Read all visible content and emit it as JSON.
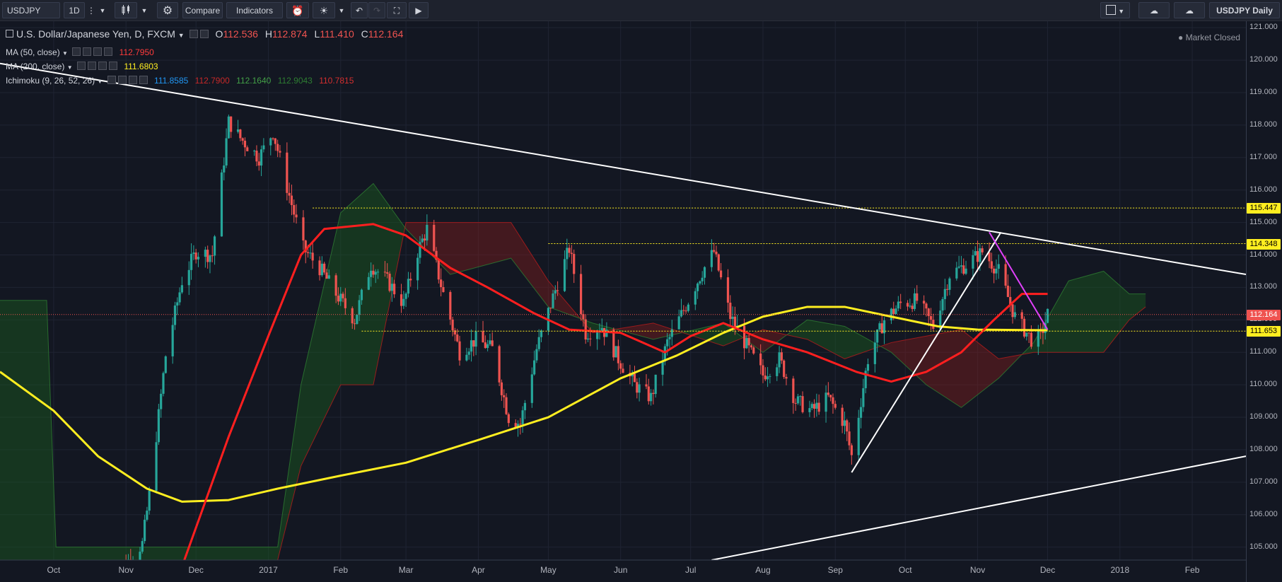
{
  "toolbar": {
    "symbol": "USDJPY",
    "interval": "1D",
    "compare_label": "Compare",
    "indicators_label": "Indicators",
    "layout_name": "USDJPY Daily"
  },
  "legend": {
    "title": "U.S. Dollar/Japanese Yen, D, FXCM",
    "open_label": "O",
    "open": "112.536",
    "high_label": "H",
    "high": "112.874",
    "low_label": "L",
    "low": "111.410",
    "close_label": "C",
    "close": "112.164",
    "ma50_label": "MA (50, close)",
    "ma50_value": "112.7950",
    "ma200_label": "MA (200, close)",
    "ma200_value": "111.6803",
    "ichimoku_label": "Ichimoku (9, 26, 52, 26)",
    "ichimoku_values": [
      "111.8585",
      "112.7900",
      "112.1640",
      "112.9043",
      "110.7815"
    ],
    "market_status": "Market Closed"
  },
  "colors": {
    "background": "#131722",
    "up": "#26a69a",
    "down": "#ef5350",
    "ma50": "#ff1f1f",
    "ma200": "#ffee20",
    "kumo_bull": "#1b5e20",
    "kumo_bear": "#7f1d1d",
    "trendline": "#ffffff",
    "magenta": "#e040fb",
    "hline": "#ffee20"
  },
  "price_tags": {
    "last": "112.164",
    "levels": [
      "115.447",
      "114.348",
      "111.653"
    ]
  },
  "chart_data": {
    "type": "candlestick",
    "ylim": [
      104.6,
      121.2
    ],
    "yticks": [
      "121.000",
      "120.000",
      "119.000",
      "118.000",
      "117.000",
      "116.000",
      "115.000",
      "114.000",
      "113.000",
      "112.000",
      "111.000",
      "110.000",
      "109.000",
      "108.000",
      "107.000",
      "106.000",
      "105.000"
    ],
    "xlim": [
      "2016-09-08",
      "2018-02-24"
    ],
    "xticks": [
      {
        "label": "Oct",
        "date": "2016-10-01"
      },
      {
        "label": "Nov",
        "date": "2016-11-01"
      },
      {
        "label": "Dec",
        "date": "2016-12-01"
      },
      {
        "label": "2017",
        "date": "2017-01-01"
      },
      {
        "label": "Feb",
        "date": "2017-02-01"
      },
      {
        "label": "Mar",
        "date": "2017-03-01"
      },
      {
        "label": "Apr",
        "date": "2017-04-01"
      },
      {
        "label": "May",
        "date": "2017-05-01"
      },
      {
        "label": "Jun",
        "date": "2017-06-01"
      },
      {
        "label": "Jul",
        "date": "2017-07-01"
      },
      {
        "label": "Aug",
        "date": "2017-08-01"
      },
      {
        "label": "Sep",
        "date": "2017-09-01"
      },
      {
        "label": "Oct",
        "date": "2017-10-01"
      },
      {
        "label": "Nov",
        "date": "2017-11-01"
      },
      {
        "label": "Dec",
        "date": "2017-12-01"
      },
      {
        "label": "2018",
        "date": "2018-01-01"
      },
      {
        "label": "Feb",
        "date": "2018-02-01"
      }
    ],
    "close_series": [
      [
        "2016-10-25",
        104.2
      ],
      [
        "2016-11-01",
        104.5
      ],
      [
        "2016-11-08",
        105.1
      ],
      [
        "2016-11-11",
        106.6
      ],
      [
        "2016-11-18",
        110.9
      ],
      [
        "2016-11-25",
        113.2
      ],
      [
        "2016-12-01",
        114.1
      ],
      [
        "2016-12-08",
        114.0
      ],
      [
        "2016-12-15",
        118.1
      ],
      [
        "2016-12-20",
        117.6
      ],
      [
        "2016-12-28",
        117.0
      ],
      [
        "2017-01-03",
        117.8
      ],
      [
        "2017-01-09",
        116.1
      ],
      [
        "2017-01-16",
        114.2
      ],
      [
        "2017-01-23",
        113.6
      ],
      [
        "2017-01-30",
        112.8
      ],
      [
        "2017-02-07",
        112.0
      ],
      [
        "2017-02-14",
        113.7
      ],
      [
        "2017-02-21",
        113.2
      ],
      [
        "2017-02-28",
        112.5
      ],
      [
        "2017-03-06",
        114.1
      ],
      [
        "2017-03-10",
        114.8
      ],
      [
        "2017-03-17",
        112.8
      ],
      [
        "2017-03-24",
        111.0
      ],
      [
        "2017-03-31",
        111.4
      ],
      [
        "2017-04-07",
        111.1
      ],
      [
        "2017-04-14",
        109.0
      ],
      [
        "2017-04-19",
        108.8
      ],
      [
        "2017-04-26",
        111.1
      ],
      [
        "2017-05-03",
        112.7
      ],
      [
        "2017-05-10",
        114.2
      ],
      [
        "2017-05-17",
        111.6
      ],
      [
        "2017-05-24",
        111.8
      ],
      [
        "2017-05-31",
        110.8
      ],
      [
        "2017-06-07",
        110.0
      ],
      [
        "2017-06-14",
        109.6
      ],
      [
        "2017-06-21",
        111.3
      ],
      [
        "2017-06-28",
        112.3
      ],
      [
        "2017-07-06",
        113.5
      ],
      [
        "2017-07-11",
        114.1
      ],
      [
        "2017-07-18",
        112.1
      ],
      [
        "2017-07-25",
        111.2
      ],
      [
        "2017-08-01",
        110.3
      ],
      [
        "2017-08-08",
        110.8
      ],
      [
        "2017-08-15",
        109.5
      ],
      [
        "2017-08-22",
        109.2
      ],
      [
        "2017-08-29",
        109.6
      ],
      [
        "2017-09-05",
        108.8
      ],
      [
        "2017-09-08",
        107.8
      ],
      [
        "2017-09-15",
        110.8
      ],
      [
        "2017-09-22",
        112.0
      ],
      [
        "2017-09-29",
        112.5
      ],
      [
        "2017-10-06",
        112.6
      ],
      [
        "2017-10-13",
        111.8
      ],
      [
        "2017-10-20",
        113.4
      ],
      [
        "2017-10-27",
        113.7
      ],
      [
        "2017-11-03",
        114.1
      ],
      [
        "2017-11-10",
        113.5
      ],
      [
        "2017-11-17",
        112.1
      ],
      [
        "2017-11-24",
        111.4
      ],
      [
        "2017-11-28",
        111.5
      ],
      [
        "2017-12-01",
        112.164
      ]
    ],
    "ma50": [
      [
        "2016-11-25",
        104.4
      ],
      [
        "2016-12-15",
        108.4
      ],
      [
        "2017-01-01",
        111.5
      ],
      [
        "2017-01-15",
        114.0
      ],
      [
        "2017-01-25",
        114.8
      ],
      [
        "2017-02-15",
        114.95
      ],
      [
        "2017-03-01",
        114.6
      ],
      [
        "2017-03-20",
        113.6
      ],
      [
        "2017-04-05",
        113.0
      ],
      [
        "2017-04-25",
        112.2
      ],
      [
        "2017-05-10",
        111.7
      ],
      [
        "2017-06-01",
        111.6
      ],
      [
        "2017-06-20",
        111.0
      ],
      [
        "2017-07-01",
        111.5
      ],
      [
        "2017-07-15",
        111.9
      ],
      [
        "2017-08-01",
        111.4
      ],
      [
        "2017-08-20",
        111.0
      ],
      [
        "2017-09-10",
        110.4
      ],
      [
        "2017-09-25",
        110.1
      ],
      [
        "2017-10-10",
        110.4
      ],
      [
        "2017-10-25",
        111.0
      ],
      [
        "2017-11-08",
        112.0
      ],
      [
        "2017-11-20",
        112.8
      ],
      [
        "2017-12-01",
        112.8
      ]
    ],
    "ma200": [
      [
        "2016-09-08",
        110.4
      ],
      [
        "2016-10-01",
        109.2
      ],
      [
        "2016-10-20",
        107.8
      ],
      [
        "2016-11-10",
        106.8
      ],
      [
        "2016-11-25",
        106.4
      ],
      [
        "2016-12-15",
        106.45
      ],
      [
        "2017-01-05",
        106.8
      ],
      [
        "2017-02-01",
        107.2
      ],
      [
        "2017-03-01",
        107.6
      ],
      [
        "2017-04-01",
        108.3
      ],
      [
        "2017-05-01",
        109.0
      ],
      [
        "2017-06-01",
        110.2
      ],
      [
        "2017-06-25",
        110.9
      ],
      [
        "2017-07-15",
        111.6
      ],
      [
        "2017-08-01",
        112.1
      ],
      [
        "2017-08-20",
        112.4
      ],
      [
        "2017-09-05",
        112.4
      ],
      [
        "2017-09-25",
        112.1
      ],
      [
        "2017-10-15",
        111.8
      ],
      [
        "2017-11-01",
        111.7
      ],
      [
        "2017-12-01",
        111.68
      ]
    ],
    "ichimoku_cloud": {
      "span_a": [
        [
          "2016-09-08",
          112.6
        ],
        [
          "2016-09-28",
          112.6
        ],
        [
          "2016-10-02",
          105.0
        ],
        [
          "2017-01-05",
          105.0
        ],
        [
          "2017-01-15",
          110.0
        ],
        [
          "2017-02-01",
          115.3
        ],
        [
          "2017-02-15",
          116.2
        ],
        [
          "2017-03-01",
          114.8
        ],
        [
          "2017-03-20",
          113.4
        ],
        [
          "2017-04-15",
          113.9
        ],
        [
          "2017-05-01",
          112.4
        ],
        [
          "2017-05-20",
          111.9
        ],
        [
          "2017-06-15",
          111.4
        ],
        [
          "2017-07-15",
          111.9
        ],
        [
          "2017-08-01",
          111.0
        ],
        [
          "2017-08-20",
          112.0
        ],
        [
          "2017-09-05",
          111.8
        ],
        [
          "2017-09-25",
          111.0
        ],
        [
          "2017-10-10",
          110.0
        ],
        [
          "2017-10-25",
          109.3
        ],
        [
          "2017-11-10",
          110.2
        ],
        [
          "2017-11-25",
          111.3
        ],
        [
          "2017-12-10",
          113.2
        ],
        [
          "2017-12-25",
          113.5
        ],
        [
          "2018-01-05",
          112.8
        ],
        [
          "2018-01-12",
          112.8
        ]
      ],
      "span_b": [
        [
          "2016-09-08",
          104.6
        ],
        [
          "2016-09-28",
          104.6
        ],
        [
          "2016-10-02",
          104.6
        ],
        [
          "2017-01-05",
          104.6
        ],
        [
          "2017-01-15",
          107.5
        ],
        [
          "2017-02-01",
          110.0
        ],
        [
          "2017-02-15",
          110.0
        ],
        [
          "2017-03-01",
          115.0
        ],
        [
          "2017-03-20",
          115.0
        ],
        [
          "2017-04-15",
          115.0
        ],
        [
          "2017-05-01",
          113.2
        ],
        [
          "2017-05-20",
          111.6
        ],
        [
          "2017-06-15",
          111.9
        ],
        [
          "2017-07-15",
          111.2
        ],
        [
          "2017-08-01",
          111.7
        ],
        [
          "2017-08-20",
          111.4
        ],
        [
          "2017-09-05",
          110.8
        ],
        [
          "2017-09-25",
          111.3
        ],
        [
          "2017-10-10",
          111.5
        ],
        [
          "2017-10-25",
          111.7
        ],
        [
          "2017-11-10",
          110.8
        ],
        [
          "2017-11-25",
          111.0
        ],
        [
          "2017-12-10",
          111.0
        ],
        [
          "2017-12-25",
          111.0
        ],
        [
          "2018-01-05",
          112.0
        ],
        [
          "2018-01-12",
          112.4
        ]
      ]
    },
    "trendlines": [
      {
        "from": [
          "2016-09-08",
          119.9
        ],
        "to": [
          "2018-02-24",
          113.4
        ],
        "color": "white"
      },
      {
        "from": [
          "2017-07-10",
          104.6
        ],
        "to": [
          "2018-02-24",
          107.8
        ],
        "color": "white"
      },
      {
        "from": [
          "2017-09-08",
          107.3
        ],
        "to": [
          "2017-11-11",
          114.7
        ],
        "color": "white"
      },
      {
        "from": [
          "2017-11-06",
          114.7
        ],
        "to": [
          "2017-12-01",
          111.7
        ],
        "color": "magenta"
      }
    ],
    "hlines": [
      {
        "value": 115.447,
        "from": "2017-01-20"
      },
      {
        "value": 114.348,
        "from": "2017-05-01"
      },
      {
        "value": 111.653,
        "from": "2017-02-10"
      }
    ],
    "last_price": 112.164
  }
}
